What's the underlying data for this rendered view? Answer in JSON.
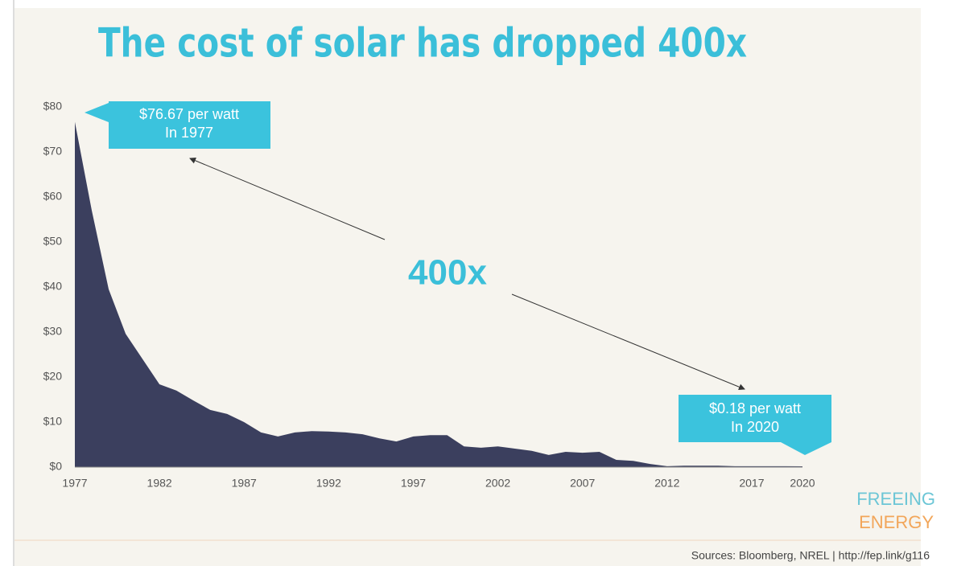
{
  "chart_data": {
    "type": "area",
    "title": "The cost of solar has dropped 400x",
    "x": [
      1977,
      1978,
      1979,
      1980,
      1981,
      1982,
      1983,
      1984,
      1985,
      1986,
      1987,
      1988,
      1989,
      1990,
      1991,
      1992,
      1993,
      1994,
      1995,
      1996,
      1997,
      1998,
      1999,
      2000,
      2001,
      2002,
      2003,
      2004,
      2005,
      2006,
      2007,
      2008,
      2009,
      2010,
      2011,
      2012,
      2013,
      2014,
      2015,
      2016,
      2017,
      2018,
      2019,
      2020
    ],
    "values": [
      76.67,
      57,
      39.5,
      29.6,
      24,
      18.4,
      17,
      14.8,
      12.7,
      11.8,
      10,
      7.7,
      6.8,
      7.7,
      8,
      7.9,
      7.7,
      7.3,
      6.4,
      5.7,
      6.8,
      7.1,
      7.1,
      4.6,
      4.3,
      4.6,
      4.1,
      3.6,
      2.7,
      3.4,
      3.2,
      3.4,
      1.6,
      1.4,
      0.7,
      0.2,
      0.3,
      0.3,
      0.3,
      0.2,
      0.2,
      0.2,
      0.2,
      0.18
    ],
    "color": "#3b3f5e",
    "xlim": [
      1977,
      2020
    ],
    "ylim": [
      0,
      80
    ],
    "xticks": [
      1977,
      1982,
      1987,
      1992,
      1997,
      2002,
      2007,
      2012,
      2017,
      2020
    ],
    "yticks": [
      {
        "value": 0,
        "label": "$0"
      },
      {
        "value": 10,
        "label": "$10"
      },
      {
        "value": 20,
        "label": "$20"
      },
      {
        "value": 30,
        "label": "$30"
      },
      {
        "value": 40,
        "label": "$40"
      },
      {
        "value": 50,
        "label": "$50"
      },
      {
        "value": 60,
        "label": "$60"
      },
      {
        "value": 70,
        "label": "$70"
      },
      {
        "value": 80,
        "label": "$80"
      }
    ],
    "annotations": [
      {
        "lines": [
          "$76.67 per watt",
          "In 1977"
        ]
      },
      {
        "lines": [
          "400x"
        ]
      },
      {
        "lines": [
          "$0.18 per watt",
          "In 2020"
        ]
      }
    ]
  },
  "logo": [
    "FREEING",
    "ENERGY"
  ],
  "source": "Sources: Bloomberg, NREL | http://fep.link/g116"
}
